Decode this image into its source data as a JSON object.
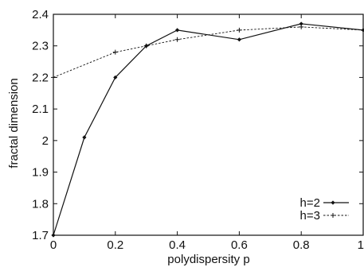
{
  "chart_data": {
    "type": "line",
    "title": "",
    "xlabel": "polydispersity p",
    "ylabel": "fractal dimension",
    "xlim": [
      0,
      1
    ],
    "ylim": [
      1.7,
      2.4
    ],
    "grid": false,
    "legend_position": "bottom-right",
    "x_ticks": [
      0,
      0.2,
      0.4,
      0.6,
      0.8,
      1
    ],
    "x_tick_labels": [
      "0",
      "0.2",
      "0.4",
      "0.6",
      "0.8",
      "1"
    ],
    "y_ticks": [
      1.7,
      1.8,
      1.9,
      2.0,
      2.1,
      2.2,
      2.3,
      2.4
    ],
    "y_tick_labels": [
      "1.7",
      "1.8",
      "1.9",
      "2",
      "2.1",
      "2.2",
      "2.3",
      "2.4"
    ],
    "series": [
      {
        "name": "h=2",
        "style": "solid",
        "marker": "diamond",
        "color": "#111111",
        "x": [
          0,
          0.1,
          0.2,
          0.3,
          0.4,
          0.6,
          0.8,
          1.0
        ],
        "y": [
          1.7,
          2.01,
          2.2,
          2.3,
          2.35,
          2.32,
          2.37,
          2.35
        ]
      },
      {
        "name": "h=3",
        "style": "dashed",
        "marker": "plus",
        "color": "#111111",
        "x": [
          0,
          0.2,
          0.3,
          0.4,
          0.6,
          0.8,
          1.0
        ],
        "y": [
          2.2,
          2.28,
          2.3,
          2.32,
          2.35,
          2.36,
          2.35
        ]
      }
    ]
  }
}
